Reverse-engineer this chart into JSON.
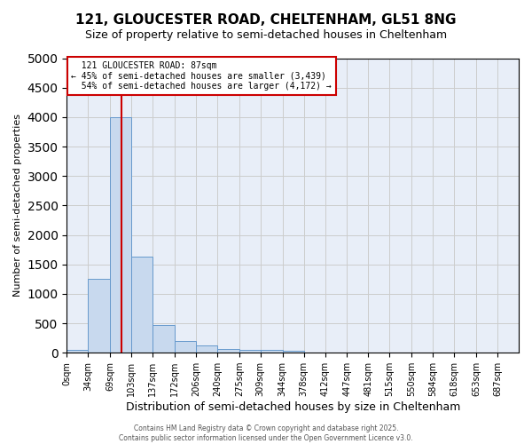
{
  "title_line1": "121, GLOUCESTER ROAD, CHELTENHAM, GL51 8NG",
  "title_line2": "Size of property relative to semi-detached houses in Cheltenham",
  "xlabel": "Distribution of semi-detached houses by size in Cheltenham",
  "ylabel": "Number of semi-detached properties",
  "bin_edges": [
    0,
    34,
    69,
    103,
    137,
    172,
    206,
    240,
    275,
    309,
    344,
    378,
    412,
    447,
    481,
    515,
    550,
    584,
    618,
    653,
    687
  ],
  "bin_labels": [
    "0sqm",
    "34sqm",
    "69sqm",
    "103sqm",
    "137sqm",
    "172sqm",
    "206sqm",
    "240sqm",
    "275sqm",
    "309sqm",
    "344sqm",
    "378sqm",
    "412sqm",
    "447sqm",
    "481sqm",
    "515sqm",
    "550sqm",
    "584sqm",
    "618sqm",
    "653sqm",
    "687sqm"
  ],
  "bar_heights": [
    50,
    1250,
    4000,
    1625,
    475,
    200,
    125,
    60,
    50,
    50,
    35,
    0,
    0,
    0,
    0,
    0,
    0,
    0,
    0,
    0
  ],
  "bar_color": "#c8d9ee",
  "bar_edge_color": "#6699cc",
  "property_size": 87,
  "property_label": "121 GLOUCESTER ROAD: 87sqm",
  "pct_smaller": 45,
  "pct_larger": 54,
  "count_smaller": 3439,
  "count_larger": 4172,
  "vline_color": "#cc0000",
  "ylim": [
    0,
    5000
  ],
  "yticks": [
    0,
    500,
    1000,
    1500,
    2000,
    2500,
    3000,
    3500,
    4000,
    4500,
    5000
  ],
  "grid_color": "#cccccc",
  "bg_color": "#e8eef8",
  "footer1": "Contains HM Land Registry data © Crown copyright and database right 2025.",
  "footer2": "Contains public sector information licensed under the Open Government Licence v3.0."
}
